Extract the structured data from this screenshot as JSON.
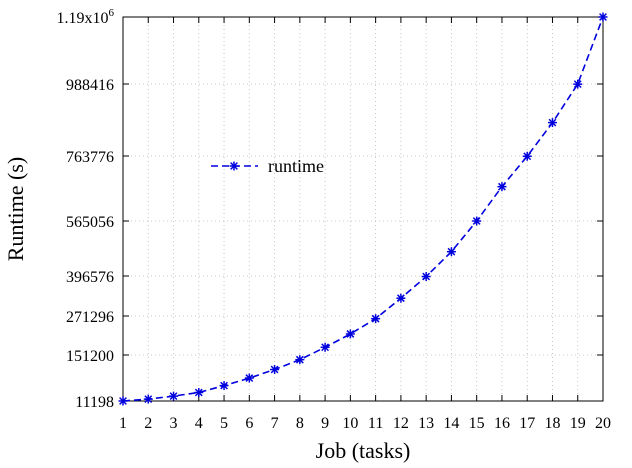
{
  "chart_data": {
    "type": "line",
    "xlabel": "Job (tasks)",
    "ylabel": "Runtime (s)",
    "xlim": [
      1,
      20
    ],
    "ylim": [
      11198,
      1190000
    ],
    "x_ticks": [
      "1",
      "2",
      "3",
      "4",
      "5",
      "6",
      "7",
      "8",
      "9",
      "10",
      "11",
      "12",
      "13",
      "14",
      "15",
      "16",
      "17",
      "18",
      "19",
      "20"
    ],
    "y_ticks": [
      {
        "value": 11198,
        "label": "11198"
      },
      {
        "value": 151200,
        "label": "151200"
      },
      {
        "value": 271296,
        "label": "271296"
      },
      {
        "value": 396576,
        "label": "396576"
      },
      {
        "value": 565056,
        "label": "565056"
      },
      {
        "value": 763776,
        "label": "763776"
      },
      {
        "value": 988416,
        "label": "988416"
      },
      {
        "value": 1190000,
        "label": "1.19x10",
        "sup": "6"
      }
    ],
    "grid": true,
    "legend_position": "upper-left",
    "series": [
      {
        "name": "runtime",
        "color": "#0000dd",
        "line_style": "dashed",
        "marker": "asterisk",
        "x": [
          1,
          2,
          3,
          4,
          5,
          6,
          7,
          8,
          9,
          10,
          11,
          12,
          13,
          14,
          15,
          16,
          17,
          18,
          19,
          20
        ],
        "values": [
          11198,
          17000,
          26000,
          37000,
          58000,
          81000,
          107000,
          137000,
          175000,
          216000,
          263000,
          327000,
          395000,
          471000,
          565000,
          670000,
          763000,
          868000,
          988000,
          1190000
        ]
      }
    ]
  }
}
